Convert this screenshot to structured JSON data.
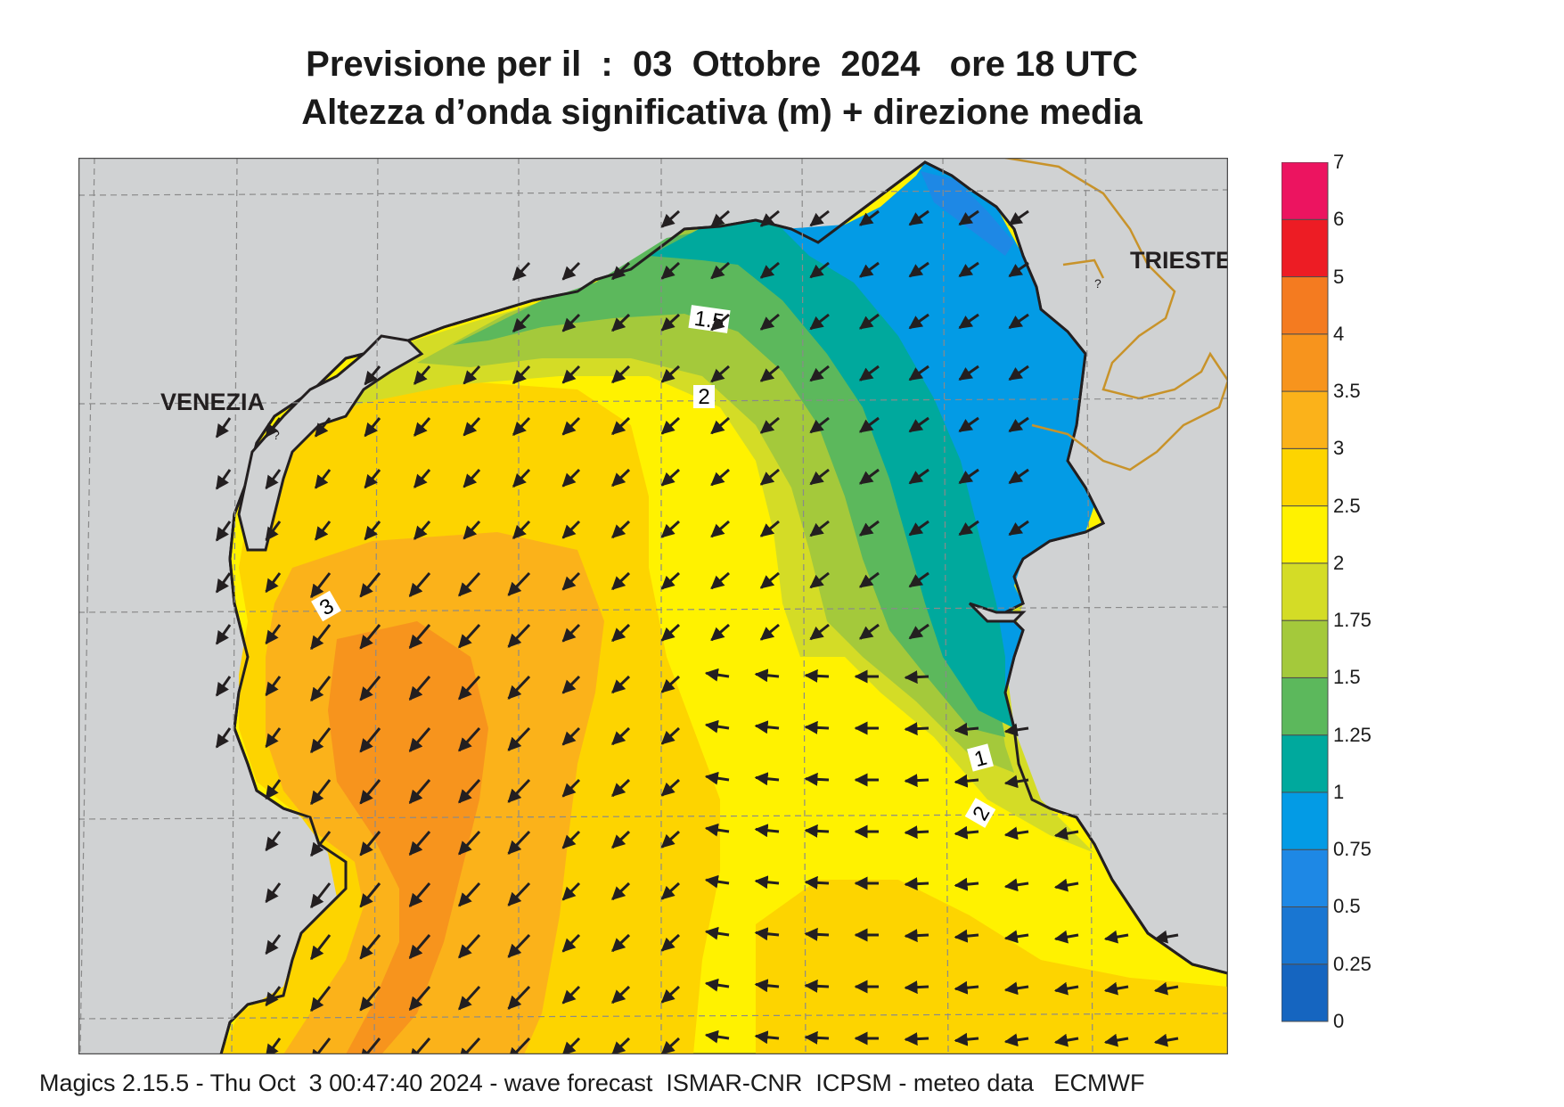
{
  "title_line1": "Previsione per il  :  03  Ottobre  2024   ore 18 UTC",
  "title_line2": "Altezza d’onda significativa (m) + direzione media",
  "footer": "Magics 2.15.5 - Thu Oct  3 00:47:40 2024 - wave forecast  ISMAR-CNR  ICPSM - meteo data   ECMWF",
  "places": {
    "venezia": "VENEZIA",
    "trieste": "TRIESTE"
  },
  "contour_labels": [
    "1.5",
    "2",
    "3",
    "1",
    "2"
  ],
  "legend": {
    "ticks": [
      "0",
      "0.25",
      "0.5",
      "0.75",
      "1",
      "1.25",
      "1.5",
      "1.75",
      "2",
      "2.5",
      "3",
      "3.5",
      "4",
      "5",
      "6",
      "7"
    ],
    "colors": [
      "#1565c0",
      "#1976d2",
      "#1e88e5",
      "#039be5",
      "#00a99d",
      "#5cb85c",
      "#a4c93b",
      "#d4dc26",
      "#fff200",
      "#fdd400",
      "#fbb21a",
      "#f7941d",
      "#f47b20",
      "#ed1c24",
      "#ec1460"
    ]
  },
  "colors": {
    "land": "#d0d2d3",
    "coast": "#231f20",
    "border": "#c8932a",
    "grid": "#8a8a8a"
  }
}
